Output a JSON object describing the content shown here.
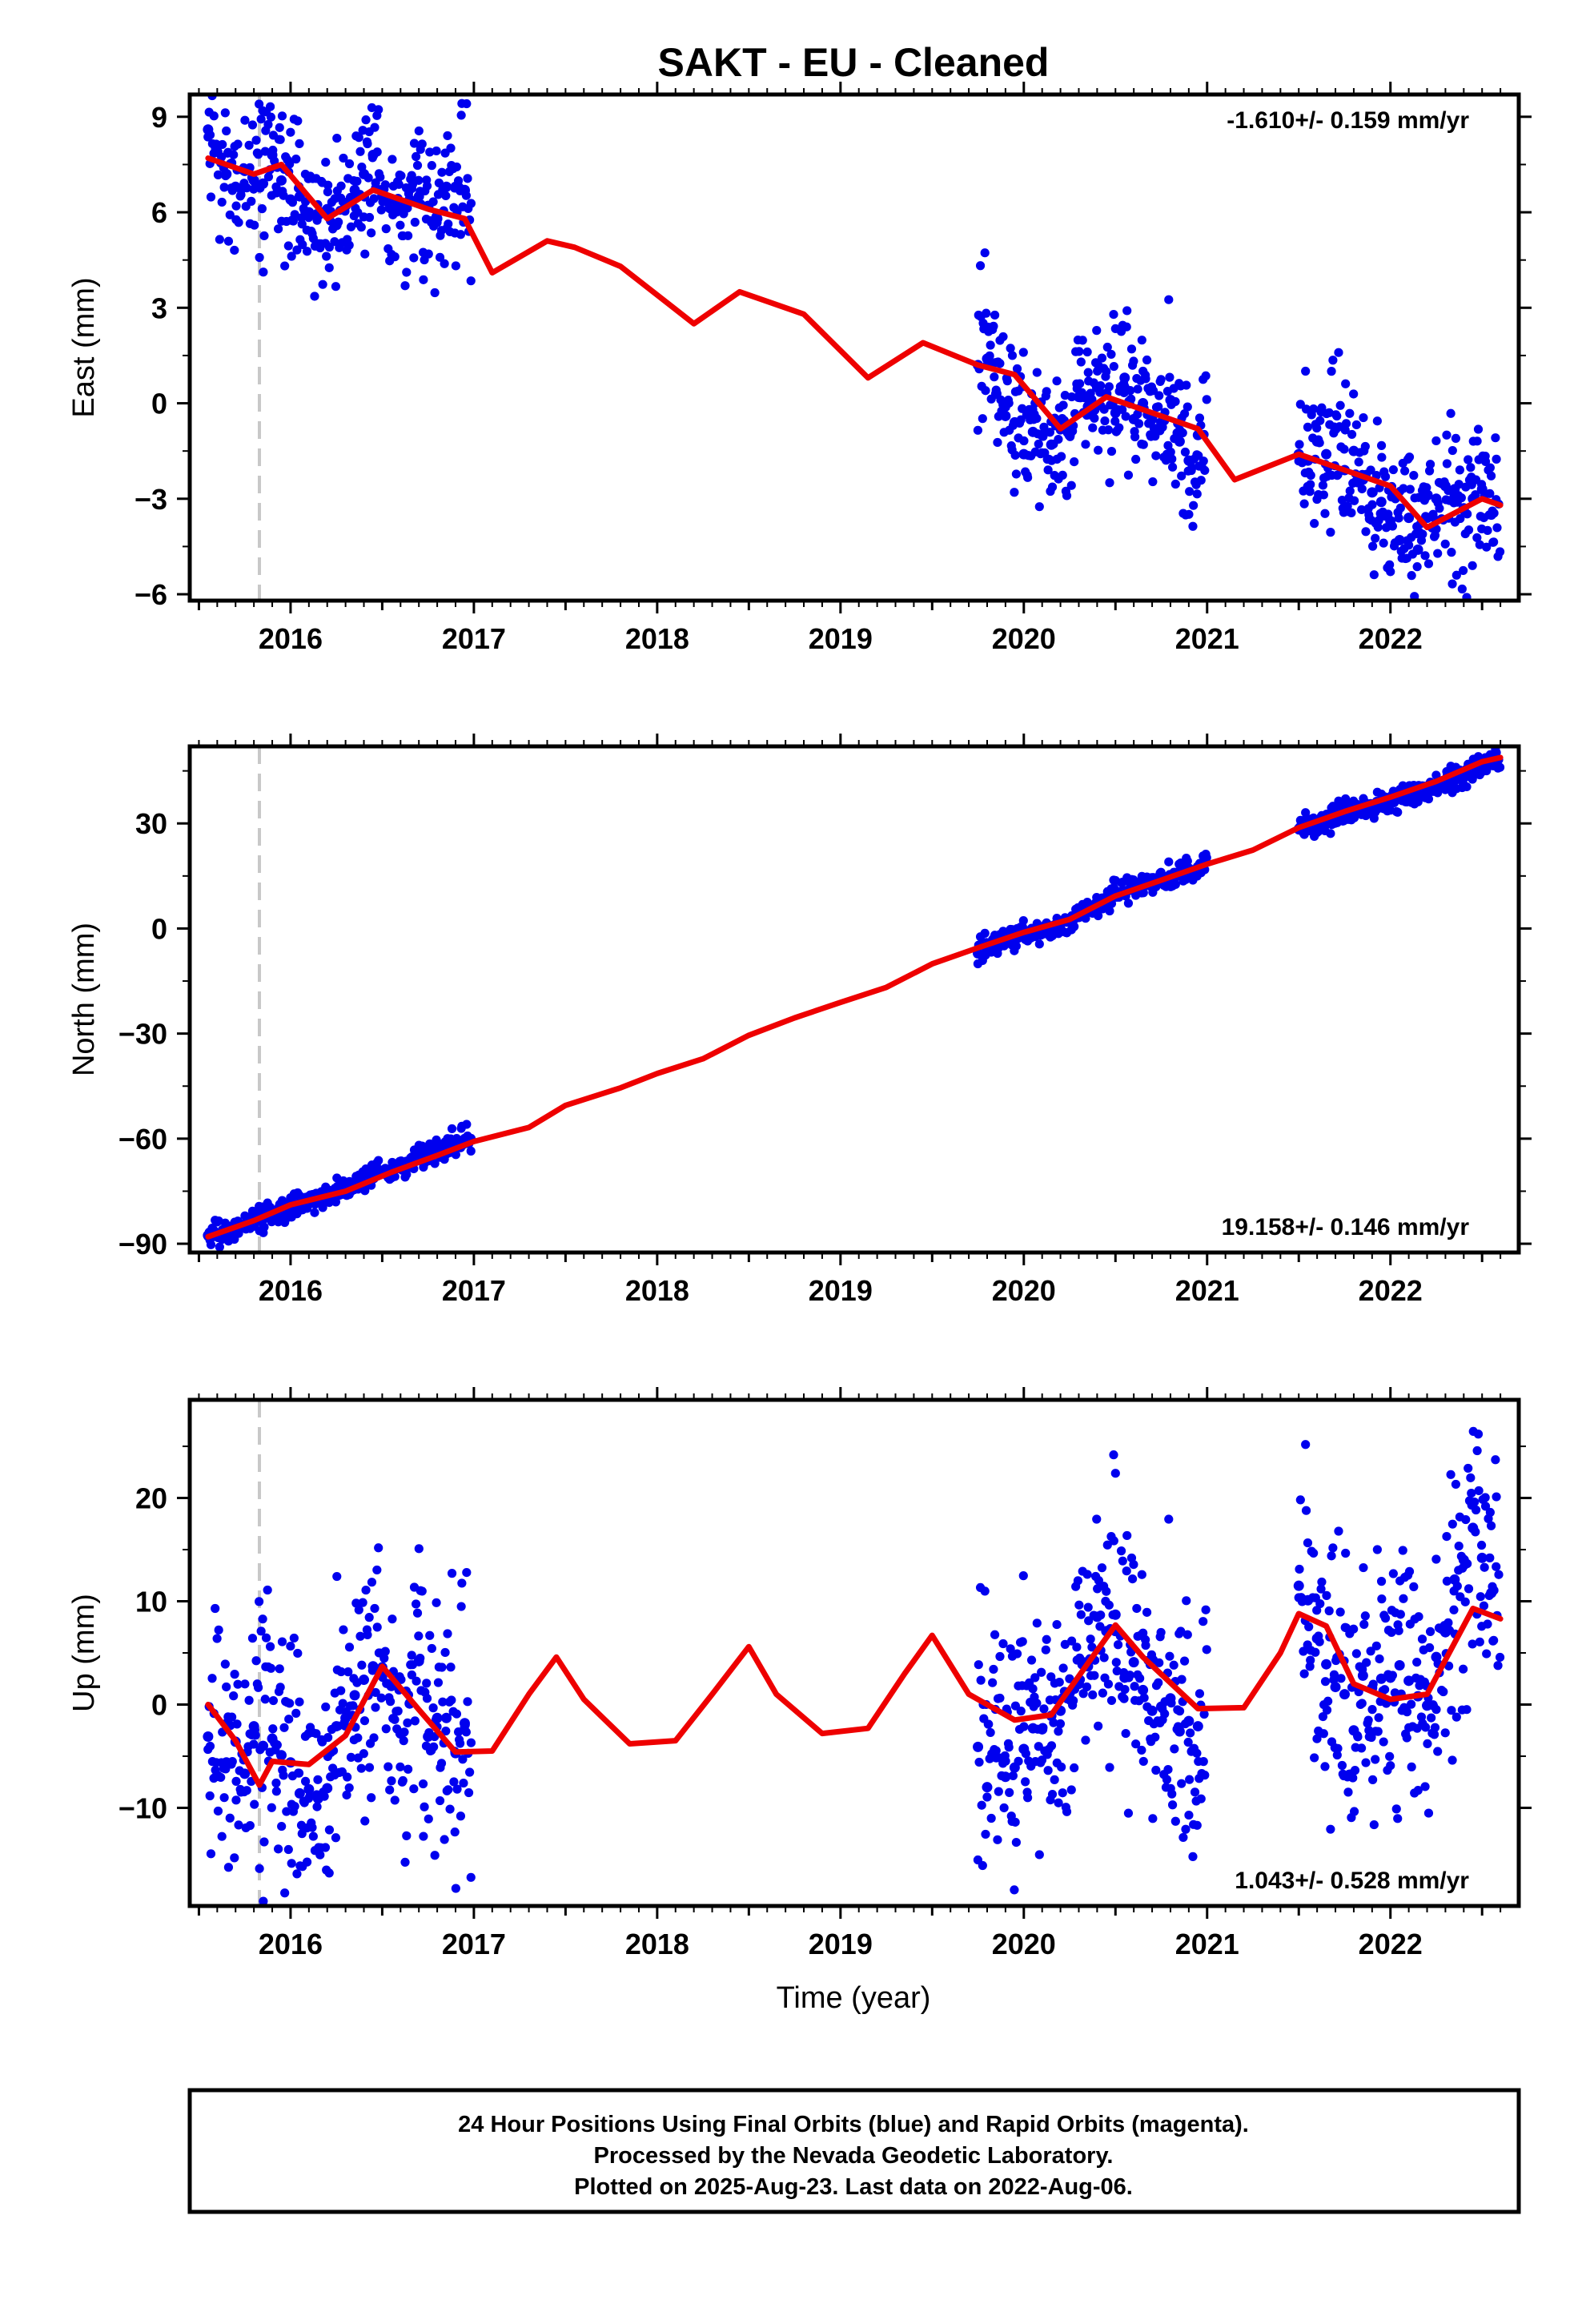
{
  "figure": {
    "title": "SAKT  - EU - Cleaned",
    "xlabel": "Time (year)",
    "footer": [
      "24 Hour Positions Using Final Orbits (blue) and Rapid Orbits (magenta).",
      "Processed by the Nevada Geodetic Laboratory.",
      "Plotted on 2025-Aug-23. Last data on 2022-Aug-06."
    ],
    "colors": {
      "data": "#0000ee",
      "model": "#ee0000",
      "event_line": "#c8c8c8",
      "frame": "#000000"
    }
  },
  "chart_data": [
    {
      "type": "scatter",
      "component": "East",
      "ylabel": "East (mm)",
      "rate": "-1.610+/- 0.159 mm/yr",
      "rate_position": "top-right",
      "xlim": [
        2015.45,
        2022.7
      ],
      "ylim": [
        -6.2,
        9.7
      ],
      "xticks": [
        2016,
        2017,
        2018,
        2019,
        2020,
        2021,
        2022
      ],
      "yticks": [
        -6,
        -3,
        0,
        3,
        6,
        9
      ],
      "ytick_labels": [
        "−6",
        "−3",
        "0",
        "3",
        "6",
        "9"
      ],
      "event_line_x": 2015.83,
      "grid": false,
      "data_segments": [
        [
          2015.55,
          2016.99
        ],
        [
          2019.75,
          2021.0
        ],
        [
          2021.5,
          2022.6
        ]
      ],
      "series": [
        {
          "name": "Final Orbits",
          "kind": "points",
          "x": [
            2015.55,
            2015.6,
            2015.65,
            2015.7,
            2015.75,
            2015.8,
            2015.85,
            2015.9,
            2015.95,
            2016.0,
            2016.05,
            2016.1,
            2016.15,
            2016.2,
            2016.25,
            2016.3,
            2016.35,
            2016.4,
            2016.45,
            2016.5,
            2016.55,
            2016.6,
            2016.65,
            2016.7,
            2016.75,
            2016.8,
            2016.85,
            2016.9,
            2016.95,
            2019.75,
            2019.8,
            2019.85,
            2019.9,
            2019.95,
            2020.0,
            2020.05,
            2020.1,
            2020.15,
            2020.2,
            2020.25,
            2020.3,
            2020.35,
            2020.4,
            2020.45,
            2020.5,
            2020.55,
            2020.6,
            2020.65,
            2020.7,
            2020.75,
            2020.8,
            2020.85,
            2020.9,
            2020.95,
            2021.5,
            2021.55,
            2021.6,
            2021.65,
            2021.7,
            2021.75,
            2021.8,
            2021.85,
            2021.9,
            2021.95,
            2022.0,
            2022.05,
            2022.1,
            2022.15,
            2022.2,
            2022.25,
            2022.3,
            2022.35,
            2022.4,
            2022.45,
            2022.5,
            2022.55
          ],
          "y": [
            8.6,
            7.9,
            7.2,
            6.8,
            7.3,
            7.0,
            6.9,
            7.8,
            7.0,
            6.4,
            6.5,
            6.0,
            5.9,
            6.1,
            5.6,
            6.2,
            6.7,
            7.2,
            7.8,
            6.5,
            6.4,
            6.2,
            6.4,
            6.5,
            6.2,
            5.8,
            6.8,
            6.8,
            6.7,
            1.2,
            1.4,
            0.3,
            -0.4,
            -0.6,
            -1.6,
            -0.9,
            -1.0,
            -1.3,
            -0.6,
            -1.0,
            0.2,
            -0.1,
            0.5,
            0.3,
            -0.3,
            0.8,
            -0.5,
            0.0,
            -0.5,
            -0.6,
            0.1,
            -1.2,
            -1.8,
            -1.0,
            -1.6,
            -1.8,
            -1.2,
            -1.6,
            -0.8,
            -2.1,
            -1.5,
            -2.4,
            -2.8,
            -3.1,
            -3.7,
            -4.3,
            -3.6,
            -4.6,
            -2.9,
            -3.0,
            -2.6,
            -2.7,
            -3.3,
            -3.0,
            -2.7,
            -3.5
          ]
        },
        {
          "name": "Model",
          "kind": "line",
          "x": [
            2015.55,
            2015.8,
            2015.95,
            2016.2,
            2016.45,
            2016.75,
            2016.95,
            2017.1,
            2017.4,
            2017.55,
            2017.8,
            2018.2,
            2018.45,
            2018.8,
            2019.15,
            2019.45,
            2019.75,
            2019.95,
            2020.2,
            2020.45,
            2020.75,
            2020.95,
            2021.15,
            2021.5,
            2021.75,
            2022.0,
            2022.2,
            2022.5,
            2022.6
          ],
          "y": [
            7.7,
            7.2,
            7.5,
            5.8,
            6.7,
            6.1,
            5.8,
            4.1,
            5.1,
            4.9,
            4.3,
            2.5,
            3.5,
            2.8,
            0.8,
            1.9,
            1.2,
            0.9,
            -0.8,
            0.2,
            -0.4,
            -0.8,
            -2.4,
            -1.6,
            -2.1,
            -2.6,
            -3.9,
            -3.0,
            -3.2
          ]
        }
      ]
    },
    {
      "type": "scatter",
      "component": "North",
      "ylabel": "North (mm)",
      "rate": "19.158+/- 0.146 mm/yr",
      "rate_position": "bottom-right",
      "xlim": [
        2015.45,
        2022.7
      ],
      "ylim": [
        -92.5,
        52
      ],
      "xticks": [
        2016,
        2017,
        2018,
        2019,
        2020,
        2021,
        2022
      ],
      "yticks": [
        -90,
        -60,
        -30,
        0,
        30
      ],
      "ytick_labels": [
        "−90",
        "−60",
        "−30",
        "0",
        "30"
      ],
      "event_line_x": 2015.83,
      "grid": false,
      "data_segments": [
        [
          2015.55,
          2016.99
        ],
        [
          2019.75,
          2021.0
        ],
        [
          2021.5,
          2022.6
        ]
      ],
      "series": [
        {
          "name": "Final Orbits",
          "kind": "points",
          "x": [
            2015.55,
            2015.6,
            2015.65,
            2015.7,
            2015.75,
            2015.8,
            2015.85,
            2015.9,
            2015.95,
            2016.0,
            2016.05,
            2016.1,
            2016.15,
            2016.2,
            2016.25,
            2016.3,
            2016.35,
            2016.4,
            2016.45,
            2016.5,
            2016.55,
            2016.6,
            2016.65,
            2016.7,
            2016.75,
            2016.8,
            2016.85,
            2016.9,
            2016.95,
            2019.75,
            2019.8,
            2019.85,
            2019.9,
            2019.95,
            2020.0,
            2020.05,
            2020.1,
            2020.15,
            2020.2,
            2020.25,
            2020.3,
            2020.35,
            2020.4,
            2020.45,
            2020.5,
            2020.55,
            2020.6,
            2020.65,
            2020.7,
            2020.75,
            2020.8,
            2020.85,
            2020.9,
            2020.95,
            2021.5,
            2021.55,
            2021.6,
            2021.65,
            2021.7,
            2021.75,
            2021.8,
            2021.85,
            2021.9,
            2021.95,
            2022.0,
            2022.05,
            2022.1,
            2022.15,
            2022.2,
            2022.25,
            2022.3,
            2022.35,
            2022.4,
            2022.45,
            2022.5,
            2022.55
          ],
          "y": [
            -87.6,
            -87.4,
            -86.6,
            -85.6,
            -84.4,
            -83.0,
            -82.8,
            -81.9,
            -80.7,
            -79.9,
            -78.6,
            -77.9,
            -77.0,
            -75.8,
            -75.2,
            -74.2,
            -73.4,
            -71.3,
            -69.6,
            -69.2,
            -68.7,
            -67.8,
            -66.6,
            -64.9,
            -64.2,
            -63.4,
            -62.5,
            -61.0,
            -60.1,
            -7.1,
            -6.0,
            -5.1,
            -3.9,
            -3.1,
            -2.3,
            -1.7,
            -0.9,
            -0.2,
            1.2,
            2.0,
            3.3,
            5.2,
            6.3,
            8.1,
            9.9,
            10.7,
            11.3,
            12.0,
            13.1,
            14.1,
            14.3,
            16.0,
            17.1,
            17.6,
            28.4,
            29.3,
            30.0,
            30.8,
            31.7,
            33.1,
            33.8,
            34.2,
            34.9,
            35.8,
            36.1,
            37.5,
            37.8,
            38.6,
            39.8,
            41.2,
            42.3,
            43.5,
            44.2,
            45.7,
            46.5,
            47.7
          ]
        },
        {
          "name": "Model",
          "kind": "line",
          "x": [
            2015.55,
            2015.8,
            2016.0,
            2016.3,
            2016.55,
            2016.8,
            2017.0,
            2017.3,
            2017.5,
            2017.8,
            2018.0,
            2018.25,
            2018.5,
            2018.75,
            2019.0,
            2019.25,
            2019.5,
            2019.75,
            2020.0,
            2020.25,
            2020.5,
            2020.75,
            2021.0,
            2021.25,
            2021.5,
            2021.75,
            2022.0,
            2022.25,
            2022.5,
            2022.6
          ],
          "y": [
            -88.0,
            -83.4,
            -78.9,
            -75.0,
            -69.6,
            -64.8,
            -60.8,
            -56.8,
            -50.5,
            -45.5,
            -41.4,
            -37.2,
            -30.5,
            -25.5,
            -21.1,
            -16.8,
            -10.1,
            -5.5,
            -1.1,
            2.6,
            9.3,
            13.8,
            18.4,
            22.4,
            28.8,
            33.4,
            37.5,
            42.0,
            47.6,
            48.8
          ]
        }
      ]
    },
    {
      "type": "scatter",
      "component": "Up",
      "ylabel": "Up (mm)",
      "rate": "1.043+/- 0.528 mm/yr",
      "rate_position": "bottom-right",
      "xlim": [
        2015.45,
        2022.7
      ],
      "ylim": [
        -19.5,
        29.5
      ],
      "xticks": [
        2016,
        2017,
        2018,
        2019,
        2020,
        2021,
        2022
      ],
      "yticks": [
        -10,
        0,
        10,
        20
      ],
      "ytick_labels": [
        "−10",
        "0",
        "10",
        "20"
      ],
      "event_line_x": 2015.83,
      "grid": false,
      "data_segments": [
        [
          2015.55,
          2016.99
        ],
        [
          2019.75,
          2021.0
        ],
        [
          2021.5,
          2022.6
        ]
      ],
      "series": [
        {
          "name": "Final Orbits",
          "kind": "points",
          "x": [
            2015.55,
            2015.6,
            2015.65,
            2015.7,
            2015.75,
            2015.8,
            2015.85,
            2015.9,
            2015.95,
            2016.0,
            2016.05,
            2016.1,
            2016.15,
            2016.2,
            2016.25,
            2016.3,
            2016.35,
            2016.4,
            2016.45,
            2016.5,
            2016.55,
            2016.6,
            2016.65,
            2016.7,
            2016.75,
            2016.8,
            2016.85,
            2016.9,
            2016.95,
            2019.75,
            2019.8,
            2019.85,
            2019.9,
            2019.95,
            2020.0,
            2020.05,
            2020.1,
            2020.15,
            2020.2,
            2020.25,
            2020.3,
            2020.35,
            2020.4,
            2020.45,
            2020.5,
            2020.55,
            2020.6,
            2020.65,
            2020.7,
            2020.75,
            2020.8,
            2020.85,
            2020.9,
            2020.95,
            2021.5,
            2021.55,
            2021.6,
            2021.65,
            2021.7,
            2021.75,
            2021.8,
            2021.85,
            2021.9,
            2021.95,
            2022.0,
            2022.05,
            2022.1,
            2022.15,
            2022.2,
            2022.25,
            2022.3,
            2022.35,
            2022.4,
            2022.45,
            2022.5,
            2022.55
          ],
          "y": [
            -3.1,
            -6.9,
            -5.6,
            -3.6,
            -6.7,
            -2.1,
            -4.0,
            -3.3,
            -4.9,
            -5.6,
            -8.6,
            -8.2,
            -9.1,
            -8.1,
            -2.1,
            -1.3,
            0.9,
            2.4,
            3.7,
            3.6,
            1.8,
            -2.8,
            0.1,
            4.2,
            -3.1,
            -1.3,
            -1.3,
            -4.7,
            -1.8,
            -4.1,
            -8.0,
            -5.1,
            -7.0,
            -6.1,
            -4.3,
            -2.3,
            -2.4,
            -1.1,
            -0.6,
            1.1,
            2.0,
            3.7,
            8.5,
            7.1,
            8.7,
            2.6,
            4.1,
            1.4,
            -0.6,
            -0.2,
            0.6,
            -2.6,
            -1.6,
            -2.1,
            11.5,
            10.1,
            6.4,
            3.9,
            1.7,
            1.0,
            -2.5,
            2.8,
            1.6,
            2.5,
            2.6,
            3.8,
            2.3,
            0.8,
            -0.1,
            4.6,
            7.0,
            12.1,
            14.0,
            17.1,
            14.2,
            10.8
          ]
        },
        {
          "name": "Model",
          "kind": "line",
          "x": [
            2015.55,
            2015.7,
            2015.83,
            2015.9,
            2016.1,
            2016.3,
            2016.5,
            2016.7,
            2016.9,
            2017.1,
            2017.3,
            2017.45,
            2017.6,
            2017.85,
            2018.1,
            2018.3,
            2018.5,
            2018.65,
            2018.9,
            2019.15,
            2019.35,
            2019.5,
            2019.7,
            2019.95,
            2020.15,
            2020.35,
            2020.5,
            2020.65,
            2020.95,
            2021.2,
            2021.4,
            2021.5,
            2021.65,
            2021.8,
            2022.0,
            2022.2,
            2022.45,
            2022.6
          ],
          "y": [
            0.0,
            -3.5,
            -7.8,
            -5.5,
            -5.8,
            -3.0,
            3.7,
            -0.5,
            -4.6,
            -4.5,
            1.0,
            4.6,
            0.5,
            -3.8,
            -3.5,
            1.0,
            5.6,
            1.0,
            -2.8,
            -2.3,
            3.0,
            6.7,
            1.0,
            -1.5,
            -1.0,
            4.0,
            7.7,
            4.6,
            -0.4,
            -0.3,
            5.0,
            8.8,
            7.6,
            2.0,
            0.5,
            1.0,
            9.3,
            8.3
          ]
        }
      ]
    }
  ]
}
